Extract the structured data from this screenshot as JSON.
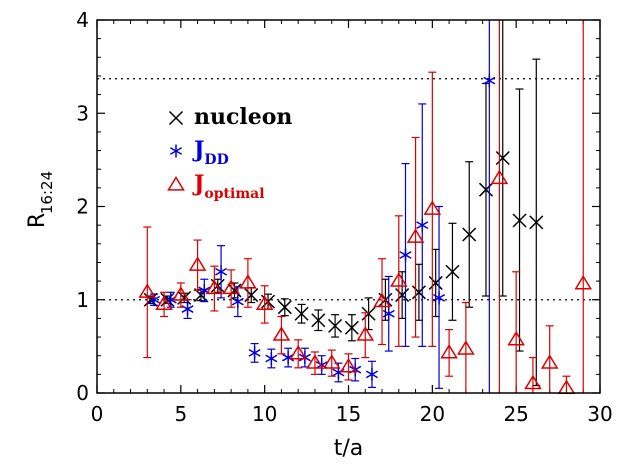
{
  "chart_data": {
    "type": "scatter",
    "xlabel": "t/a",
    "ylabel": "R",
    "ylabel_sub": "16:24",
    "xlim": [
      0,
      30
    ],
    "ylim": [
      0,
      4
    ],
    "xticks": [
      0,
      5,
      10,
      15,
      20,
      25,
      30
    ],
    "yticks": [
      0,
      1,
      2,
      3,
      4
    ],
    "reference_lines": [
      1.0,
      3.37
    ],
    "legend_position": "upper-left",
    "series": [
      {
        "name": "nucleon",
        "color": "#000000",
        "marker": "x",
        "points": [
          {
            "x": 3.2,
            "y": 1.0,
            "lo": 0.96,
            "hi": 1.04
          },
          {
            "x": 4.2,
            "y": 1.0,
            "lo": 0.96,
            "hi": 1.04
          },
          {
            "x": 5.2,
            "y": 1.02,
            "lo": 0.97,
            "hi": 1.07
          },
          {
            "x": 6.2,
            "y": 1.05,
            "lo": 0.99,
            "hi": 1.11
          },
          {
            "x": 7.2,
            "y": 1.15,
            "lo": 1.08,
            "hi": 1.22
          },
          {
            "x": 8.2,
            "y": 1.1,
            "lo": 1.02,
            "hi": 1.18
          },
          {
            "x": 9.2,
            "y": 1.05,
            "lo": 0.97,
            "hi": 1.13
          },
          {
            "x": 10.2,
            "y": 0.98,
            "lo": 0.9,
            "hi": 1.06
          },
          {
            "x": 11.2,
            "y": 0.92,
            "lo": 0.83,
            "hi": 1.01
          },
          {
            "x": 12.2,
            "y": 0.85,
            "lo": 0.75,
            "hi": 0.95
          },
          {
            "x": 13.2,
            "y": 0.78,
            "lo": 0.67,
            "hi": 0.89
          },
          {
            "x": 14.2,
            "y": 0.72,
            "lo": 0.6,
            "hi": 0.84
          },
          {
            "x": 15.2,
            "y": 0.7,
            "lo": 0.56,
            "hi": 0.84
          },
          {
            "x": 16.2,
            "y": 0.85,
            "lo": 0.68,
            "hi": 1.02
          },
          {
            "x": 17.2,
            "y": 1.0,
            "lo": 0.78,
            "hi": 1.22
          },
          {
            "x": 18.2,
            "y": 1.05,
            "lo": 0.8,
            "hi": 1.3
          },
          {
            "x": 19.2,
            "y": 1.08,
            "lo": 0.78,
            "hi": 1.38
          },
          {
            "x": 20.2,
            "y": 1.18,
            "lo": 0.82,
            "hi": 1.54
          },
          {
            "x": 21.2,
            "y": 1.3,
            "lo": 0.78,
            "hi": 1.82
          },
          {
            "x": 22.2,
            "y": 1.7,
            "lo": 0.92,
            "hi": 2.48
          },
          {
            "x": 23.2,
            "y": 2.18,
            "lo": 1.04,
            "hi": 3.32
          },
          {
            "x": 24.2,
            "y": 2.52,
            "lo": 1.04,
            "hi": 4.0
          },
          {
            "x": 25.2,
            "y": 1.85,
            "lo": 0.45,
            "hi": 3.26
          },
          {
            "x": 26.2,
            "y": 1.83,
            "lo": 0.08,
            "hi": 3.58
          }
        ]
      },
      {
        "name": "J",
        "name_sub": "DD",
        "color": "#0000dd",
        "marker": "asterisk",
        "points": [
          {
            "x": 3.4,
            "y": 1.0,
            "lo": 0.94,
            "hi": 1.06
          },
          {
            "x": 4.4,
            "y": 1.0,
            "lo": 0.92,
            "hi": 1.08
          },
          {
            "x": 5.4,
            "y": 0.9,
            "lo": 0.8,
            "hi": 1.0
          },
          {
            "x": 6.4,
            "y": 1.1,
            "lo": 0.98,
            "hi": 1.22
          },
          {
            "x": 7.4,
            "y": 1.3,
            "lo": 1.02,
            "hi": 1.58
          },
          {
            "x": 8.4,
            "y": 0.98,
            "lo": 0.82,
            "hi": 1.14
          },
          {
            "x": 9.4,
            "y": 0.43,
            "lo": 0.33,
            "hi": 0.53
          },
          {
            "x": 10.4,
            "y": 0.37,
            "lo": 0.27,
            "hi": 0.47
          },
          {
            "x": 11.4,
            "y": 0.38,
            "lo": 0.28,
            "hi": 0.48
          },
          {
            "x": 12.4,
            "y": 0.38,
            "lo": 0.28,
            "hi": 0.48
          },
          {
            "x": 13.4,
            "y": 0.3,
            "lo": 0.2,
            "hi": 0.4
          },
          {
            "x": 14.4,
            "y": 0.22,
            "lo": 0.12,
            "hi": 0.32
          },
          {
            "x": 15.4,
            "y": 0.25,
            "lo": 0.13,
            "hi": 0.37
          },
          {
            "x": 16.4,
            "y": 0.2,
            "lo": 0.06,
            "hi": 0.34
          },
          {
            "x": 17.4,
            "y": 0.85,
            "lo": 0.45,
            "hi": 1.25
          },
          {
            "x": 18.4,
            "y": 1.48,
            "lo": 0.5,
            "hi": 2.46
          },
          {
            "x": 19.4,
            "y": 1.8,
            "lo": 0.5,
            "hi": 3.1
          },
          {
            "x": 20.4,
            "y": 1.02,
            "lo": 0.05,
            "hi": 2.0
          },
          {
            "x": 23.4,
            "y": 3.35,
            "lo": 0.0,
            "hi": 4.0
          }
        ]
      },
      {
        "name": "J",
        "name_sub": "optimal",
        "color": "#dd0000",
        "marker": "triangle",
        "points": [
          {
            "x": 3.0,
            "y": 1.08,
            "lo": 0.38,
            "hi": 1.78
          },
          {
            "x": 4.0,
            "y": 0.95,
            "lo": 0.82,
            "hi": 1.08
          },
          {
            "x": 5.0,
            "y": 1.05,
            "lo": 0.92,
            "hi": 1.18
          },
          {
            "x": 6.0,
            "y": 1.37,
            "lo": 1.1,
            "hi": 1.64
          },
          {
            "x": 7.0,
            "y": 1.12,
            "lo": 0.88,
            "hi": 1.36
          },
          {
            "x": 8.0,
            "y": 1.12,
            "lo": 0.92,
            "hi": 1.32
          },
          {
            "x": 9.0,
            "y": 1.18,
            "lo": 0.92,
            "hi": 1.44
          },
          {
            "x": 10.0,
            "y": 0.95,
            "lo": 0.75,
            "hi": 1.15
          },
          {
            "x": 11.0,
            "y": 0.62,
            "lo": 0.42,
            "hi": 0.82
          },
          {
            "x": 12.0,
            "y": 0.42,
            "lo": 0.27,
            "hi": 0.57
          },
          {
            "x": 13.0,
            "y": 0.32,
            "lo": 0.2,
            "hi": 0.44
          },
          {
            "x": 14.0,
            "y": 0.32,
            "lo": 0.18,
            "hi": 0.46
          },
          {
            "x": 15.0,
            "y": 0.28,
            "lo": 0.14,
            "hi": 0.42
          },
          {
            "x": 16.0,
            "y": 0.62,
            "lo": 0.38,
            "hi": 0.86
          },
          {
            "x": 17.0,
            "y": 0.98,
            "lo": 0.52,
            "hi": 1.44
          },
          {
            "x": 18.0,
            "y": 1.2,
            "lo": 0.5,
            "hi": 1.9
          },
          {
            "x": 19.0,
            "y": 1.67,
            "lo": 0.6,
            "hi": 2.74
          },
          {
            "x": 20.0,
            "y": 1.97,
            "lo": 0.5,
            "hi": 3.44
          },
          {
            "x": 21.0,
            "y": 0.43,
            "lo": 0.18,
            "hi": 0.68
          },
          {
            "x": 22.0,
            "y": 0.47,
            "lo": 0.0,
            "hi": 0.97
          },
          {
            "x": 24.0,
            "y": 2.3,
            "lo": 0.0,
            "hi": 4.0
          },
          {
            "x": 25.0,
            "y": 0.57,
            "lo": 0.0,
            "hi": 1.3
          },
          {
            "x": 26.0,
            "y": 0.1,
            "lo": 0.0,
            "hi": 0.38
          },
          {
            "x": 27.0,
            "y": 0.32,
            "lo": 0.0,
            "hi": 0.72
          },
          {
            "x": 28.0,
            "y": 0.05,
            "lo": 0.0,
            "hi": 0.18
          },
          {
            "x": 29.0,
            "y": 1.17,
            "lo": 0.0,
            "hi": 4.0
          }
        ]
      }
    ]
  }
}
